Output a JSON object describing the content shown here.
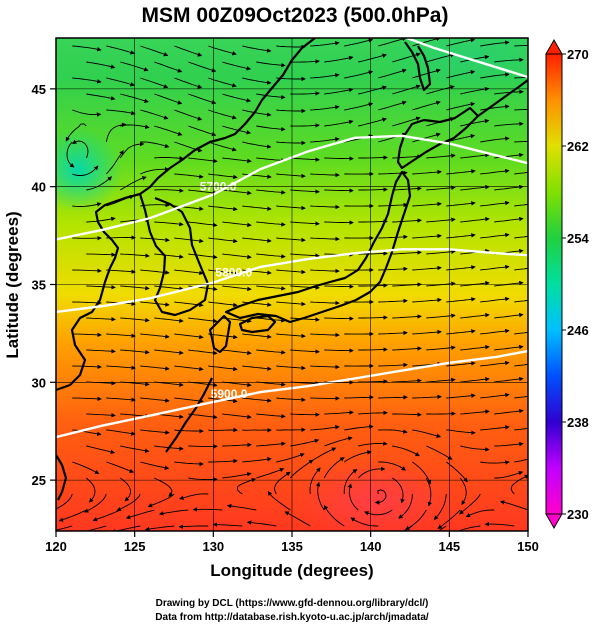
{
  "title": "MSM 00Z09Oct2023 (500.0hPa)",
  "chart_data": {
    "type": "heatmap",
    "title": "MSM 00Z09Oct2023 (500.0hPa)",
    "xlabel": "Longitude (degrees)",
    "ylabel": "Latitude  (degrees)",
    "xlim": [
      120,
      150
    ],
    "ylim": [
      22.4,
      47.6
    ],
    "x_ticks": [
      120,
      125,
      130,
      135,
      140,
      145,
      150
    ],
    "x_tick_labels": [
      "120",
      "125",
      "130",
      "135",
      "140",
      "145",
      "150"
    ],
    "y_ticks": [
      25,
      30,
      35,
      40,
      45
    ],
    "y_tick_labels": [
      "25",
      "30",
      "35",
      "40",
      "45"
    ],
    "grid": true,
    "colorbar": {
      "min": 230,
      "max": 270,
      "ticks": [
        230,
        238,
        246,
        254,
        262,
        270
      ],
      "tick_labels": [
        "230",
        "238",
        "246",
        "254",
        "262",
        "270"
      ],
      "stops": [
        "#ff00cc",
        "#c000ff",
        "#3000d0",
        "#0050ff",
        "#00c0ff",
        "#00e0a0",
        "#20d040",
        "#80e000",
        "#e0e000",
        "#ff9000",
        "#ff2000"
      ]
    },
    "contours": [
      {
        "label": "5700.0",
        "points": [
          [
            120,
            37.3
          ],
          [
            123,
            37.8
          ],
          [
            126,
            38.4
          ],
          [
            130,
            39.6
          ],
          [
            133,
            40.9
          ],
          [
            136,
            41.8
          ],
          [
            139,
            42.5
          ],
          [
            142,
            42.6
          ],
          [
            145,
            42.2
          ],
          [
            148,
            41.6
          ],
          [
            150,
            41.2
          ]
        ]
      },
      {
        "label": "5800.0",
        "points": [
          [
            120,
            33.6
          ],
          [
            123,
            33.9
          ],
          [
            126,
            34.3
          ],
          [
            130,
            35.1
          ],
          [
            133,
            35.9
          ],
          [
            136,
            36.3
          ],
          [
            139,
            36.6
          ],
          [
            142,
            36.8
          ],
          [
            145,
            36.8
          ],
          [
            148,
            36.6
          ],
          [
            150,
            36.5
          ]
        ]
      },
      {
        "label": "5900.0",
        "points": [
          [
            120,
            27.2
          ],
          [
            123,
            27.8
          ],
          [
            126,
            28.3
          ],
          [
            130,
            29.0
          ],
          [
            133,
            29.5
          ],
          [
            136,
            29.8
          ],
          [
            139,
            30.2
          ],
          [
            142,
            30.6
          ],
          [
            145,
            31.0
          ],
          [
            148,
            31.3
          ],
          [
            150,
            31.6
          ]
        ]
      },
      {
        "label": "",
        "points": [
          [
            142.3,
            47.6
          ],
          [
            144,
            47.1
          ],
          [
            146,
            46.6
          ],
          [
            148,
            46.1
          ],
          [
            150,
            45.6
          ]
        ]
      }
    ],
    "contour_labels": [
      {
        "text": "5700.0",
        "lon": 130.3,
        "lat": 39.8
      },
      {
        "text": "5800.0",
        "lon": 131.3,
        "lat": 35.4
      },
      {
        "text": "5900.0",
        "lon": 131.0,
        "lat": 29.2
      }
    ]
  },
  "credits": {
    "line1": "Drawing by DCL (https://www.gfd-dennou.org/library/dcl/)",
    "line2": "Data from http://database.rish.kyoto-u.ac.jp/arch/jmadata/"
  }
}
